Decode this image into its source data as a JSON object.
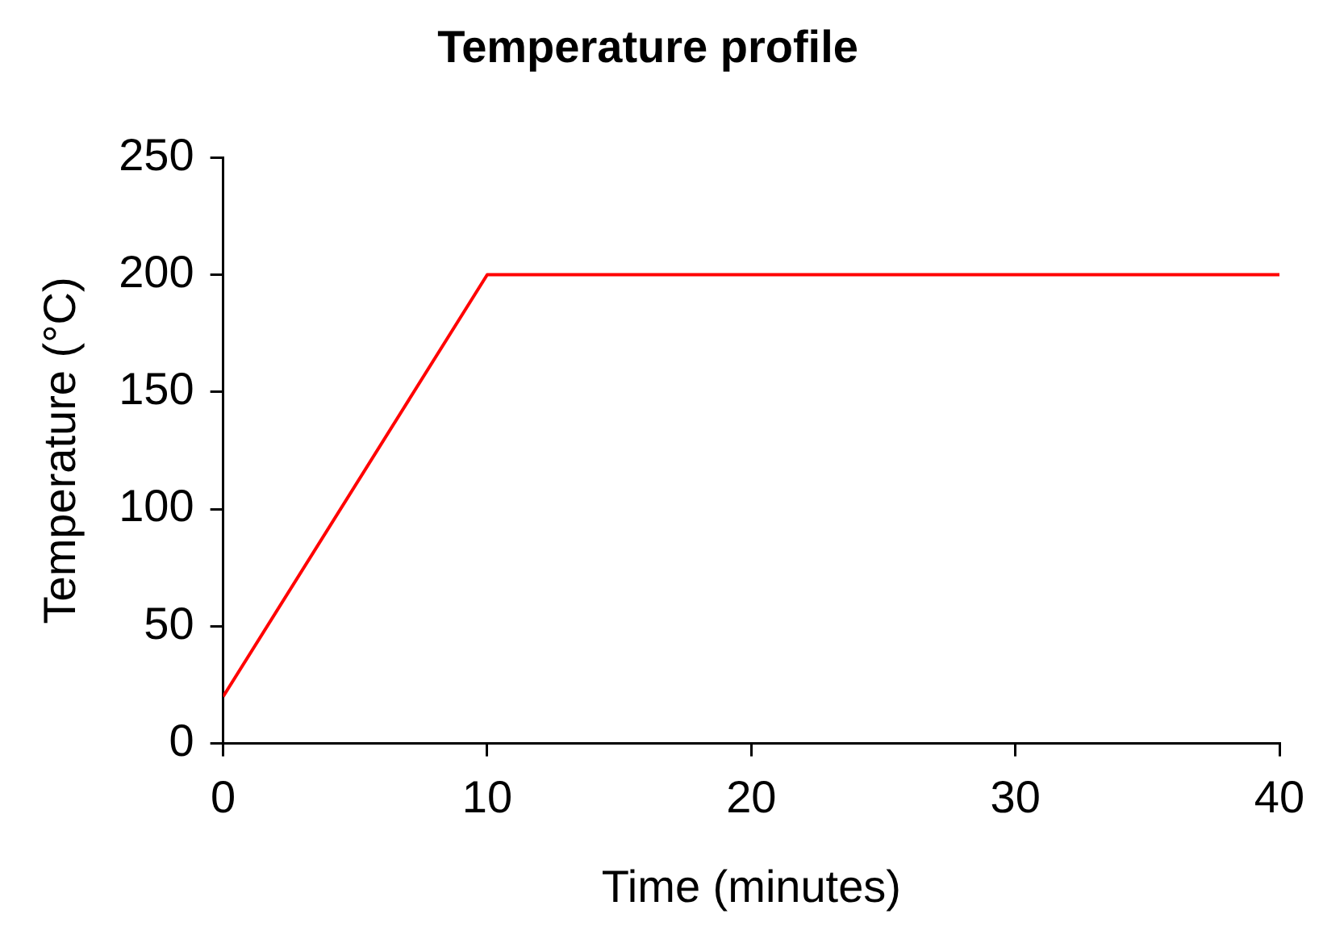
{
  "chart_data": {
    "type": "line",
    "title": "Temperature profile",
    "xlabel": "Time (minutes)",
    "ylabel": "Temperature (°C)",
    "x": [
      0,
      10,
      40
    ],
    "series": [
      {
        "color": "#ff0000",
        "values": [
          20,
          200,
          200
        ]
      }
    ],
    "xlim": [
      0,
      40
    ],
    "xticks": [
      0,
      10,
      20,
      30,
      40
    ],
    "ylim": [
      0,
      250
    ],
    "yticks": [
      0,
      50,
      100,
      150,
      200,
      250
    ],
    "grid": false,
    "legend": false,
    "marker": "none",
    "line_style": "solid"
  }
}
